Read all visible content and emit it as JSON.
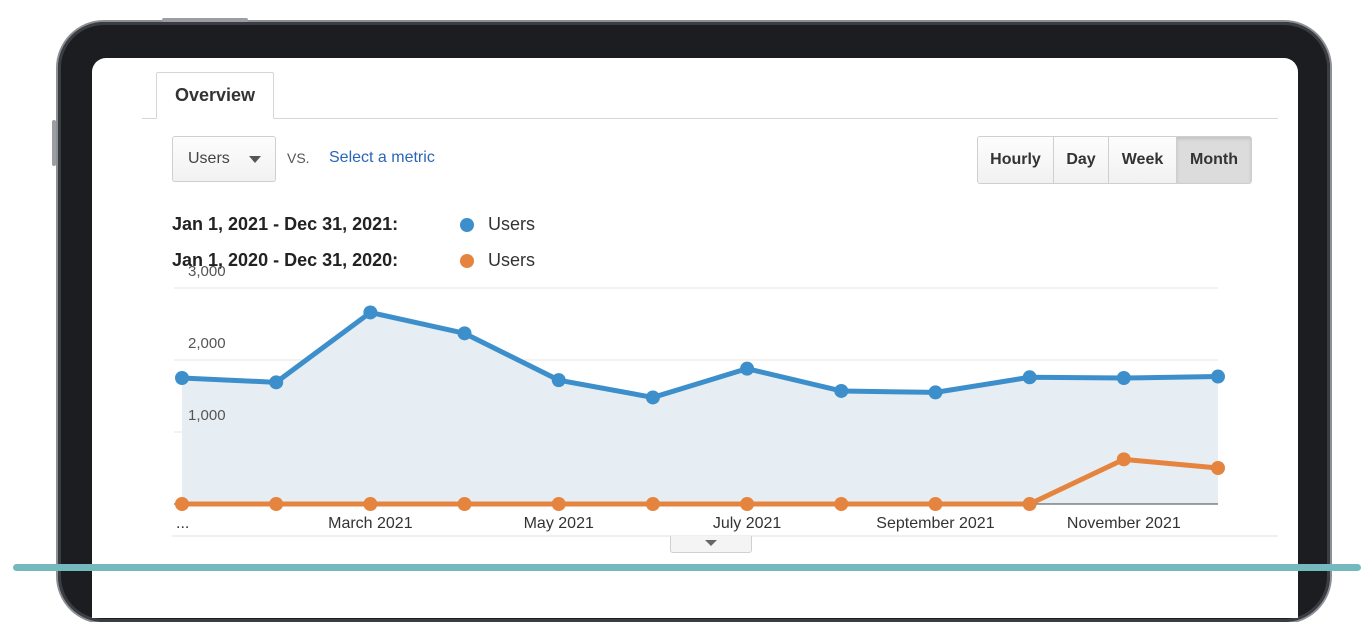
{
  "tabs": {
    "overview_label": "Overview"
  },
  "controls": {
    "metric_selected": "Users",
    "vs_label": "VS.",
    "select_metric_label": "Select a metric",
    "periods": [
      "Hourly",
      "Day",
      "Week",
      "Month"
    ],
    "active_period": "Month"
  },
  "legend": {
    "current": {
      "range": "Jan 1, 2021 - Dec 31, 2021:",
      "label": "Users",
      "color": "#3d8fcb"
    },
    "previous": {
      "range": "Jan 1, 2020 - Dec 31, 2020:",
      "label": "Users",
      "color": "#e5843f"
    }
  },
  "chart_data": {
    "type": "line",
    "title": "",
    "xlabel": "",
    "ylabel": "",
    "ylim": [
      0,
      3000
    ],
    "yticks": [
      "3,000",
      "2,000",
      "1,000"
    ],
    "x_tick_labels": [
      "...",
      "March 2021",
      "May 2021",
      "July 2021",
      "September 2021",
      "November 2021"
    ],
    "series": [
      {
        "name": "Users (Jan 1, 2021 - Dec 31, 2021)",
        "color": "#3d8fcb",
        "values": [
          1750,
          1690,
          2660,
          2370,
          1720,
          1480,
          1880,
          1570,
          1550,
          1760,
          1750,
          1770
        ]
      },
      {
        "name": "Users (Jan 1, 2020 - Dec 31, 2020)",
        "color": "#e5843f",
        "values": [
          0,
          0,
          0,
          0,
          0,
          0,
          0,
          0,
          0,
          0,
          620,
          500
        ]
      }
    ]
  }
}
